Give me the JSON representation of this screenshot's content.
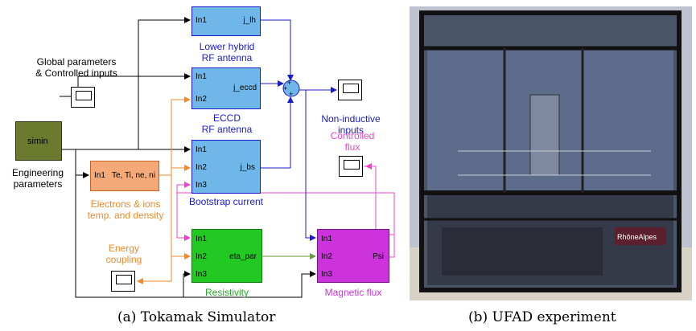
{
  "figure": {
    "caption_a": "(a) Tokamak Simulator",
    "caption_b": "(b) UFAD experiment"
  },
  "blocks": {
    "simin": {
      "label": "simin",
      "color": "#6b7a2e"
    },
    "lower_hybrid": {
      "in1": "In1",
      "out": "j_lh",
      "title1": "Lower hybrid",
      "title2": "RF antenna",
      "color": "#6fb7e8"
    },
    "eccd": {
      "in1": "In1",
      "in2": "In2",
      "out": "j_eccd",
      "title1": "ECCD",
      "title2": "RF antenna",
      "color": "#6fb7e8"
    },
    "bootstrap": {
      "in1": "In1",
      "in2": "In2",
      "in3": "In3",
      "out": "j_bs",
      "title": "Bootstrap current",
      "color": "#6fb7e8"
    },
    "electrons": {
      "in1": "In1",
      "out": "Te, Ti, ne, ni",
      "title1": "Electrons & ions",
      "title2": "temp. and density",
      "color": "#f5a878"
    },
    "resistivity": {
      "in1": "In1",
      "in2": "In2",
      "in3": "In3",
      "out": "eta_par",
      "title": "Resistivity",
      "color": "#22c922"
    },
    "magnetic": {
      "in1": "In1",
      "in2": "In2",
      "in3": "In3",
      "out": "Psi",
      "title": "Magnetic flux",
      "color": "#cc33dd"
    }
  },
  "labels": {
    "global_params_1": "Global parameters",
    "global_params_2": "& Controlled inputs",
    "engineering_1": "Engineering",
    "engineering_2": "parameters",
    "non_inductive_1": "Non-inductive",
    "non_inductive_2": "inputs",
    "controlled_flux_1": "Controlled",
    "controlled_flux_2": "flux",
    "energy_coupling_1": "Energy",
    "energy_coupling_2": "coupling"
  },
  "photo": {
    "logo_text": "RhôneAlpes"
  },
  "colors": {
    "blue_wire": "#1a1acc",
    "orange_wire": "#f08a2a",
    "pink_wire": "#ee44cc",
    "black_wire": "#000000"
  }
}
